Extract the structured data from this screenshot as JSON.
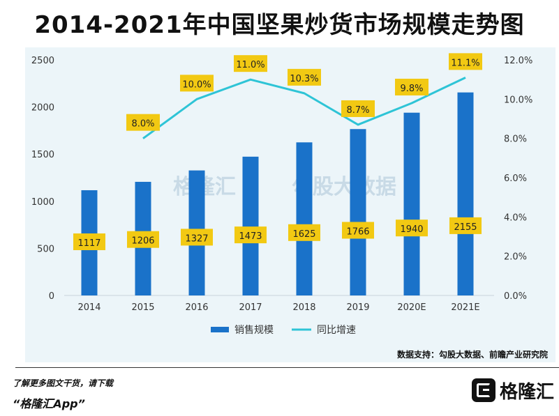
{
  "title": "2014-2021年中国坚果炒货市场规模走势图",
  "chart_data": {
    "type": "bar+line",
    "categories": [
      "2014",
      "2015",
      "2016",
      "2017",
      "2018",
      "2019",
      "2020E",
      "2021E"
    ],
    "series": [
      {
        "name": "销售规模",
        "type": "bar",
        "axis": "left",
        "values": [
          1117,
          1206,
          1327,
          1473,
          1625,
          1766,
          1940,
          2155
        ]
      },
      {
        "name": "同比增速",
        "type": "line",
        "axis": "right",
        "values": [
          null,
          8.0,
          10.0,
          11.0,
          10.3,
          8.7,
          9.8,
          11.1
        ]
      }
    ],
    "bar_labels": [
      "1117",
      "1206",
      "1327",
      "1473",
      "1625",
      "1766",
      "1940",
      "2155"
    ],
    "line_labels": [
      "",
      "8.0%",
      "10.0%",
      "11.0%",
      "10.3%",
      "8.7%",
      "9.8%",
      "11.1%"
    ],
    "y_left": {
      "min": 0,
      "max": 2500,
      "ticks": [
        "0",
        "500",
        "1000",
        "1500",
        "2000",
        "2500"
      ]
    },
    "y_right": {
      "min": 0,
      "max": 12,
      "ticks": [
        "0.0%",
        "2.0%",
        "4.0%",
        "6.0%",
        "8.0%",
        "10.0%",
        "12.0%"
      ]
    },
    "legend_position": "bottom",
    "colors": {
      "bar": "#1a72c9",
      "line": "#2ec4d6",
      "label_bg": "#f2c913"
    }
  },
  "watermarks": [
    "格隆汇",
    "勾股大数据"
  ],
  "footer": {
    "source": "数据支持：勾股大数据、前瞻产业研究院",
    "cta": "了解更多图文干货，请下载",
    "app_name": "“格隆汇App”",
    "brand": "格隆汇"
  }
}
